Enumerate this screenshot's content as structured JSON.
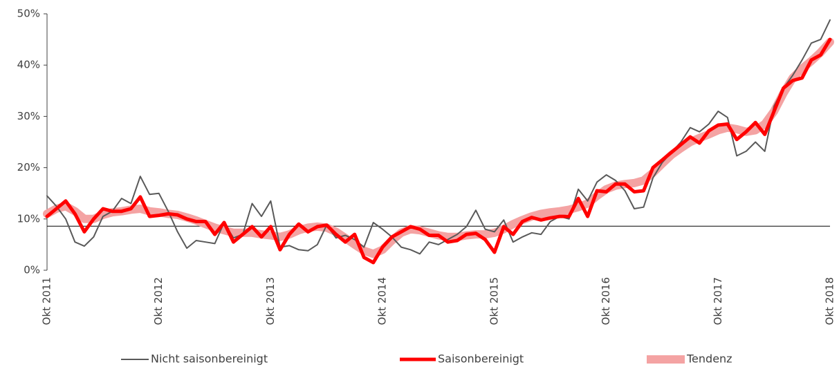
{
  "chart_data": {
    "type": "line",
    "categories": [
      "Okt 2011",
      null,
      null,
      null,
      null,
      null,
      null,
      null,
      null,
      null,
      null,
      null,
      "Okt 2012",
      null,
      null,
      null,
      null,
      null,
      null,
      null,
      null,
      null,
      null,
      null,
      "Okt 2013",
      null,
      null,
      null,
      null,
      null,
      null,
      null,
      null,
      null,
      null,
      null,
      "Okt 2014",
      null,
      null,
      null,
      null,
      null,
      null,
      null,
      null,
      null,
      null,
      null,
      "Okt 2015",
      null,
      null,
      null,
      null,
      null,
      null,
      null,
      null,
      null,
      null,
      null,
      "Okt 2016",
      null,
      null,
      null,
      null,
      null,
      null,
      null,
      null,
      null,
      null,
      null,
      "Okt 2017",
      null,
      null,
      null,
      null,
      null,
      null,
      null,
      null,
      null,
      null,
      null,
      "Okt 2018"
    ],
    "series": [
      {
        "name": "Tendenz",
        "color": "#f4a3a3",
        "width": 12,
        "values": [
          11,
          12,
          12.5,
          11.5,
          10,
          10,
          10.8,
          11.3,
          11.5,
          11.8,
          12,
          11.5,
          11.3,
          11,
          10.8,
          10.3,
          9.7,
          9,
          8.3,
          7.8,
          7.3,
          7.3,
          7.3,
          7,
          6.8,
          6.5,
          7,
          7.8,
          8.3,
          8.5,
          8.3,
          7.5,
          6.3,
          5,
          3.8,
          3.2,
          4,
          5.8,
          7.3,
          8,
          7.8,
          7.3,
          6.8,
          6.5,
          6.5,
          6.8,
          7,
          7,
          7.3,
          8,
          9,
          9.8,
          10.5,
          11,
          11.3,
          11.5,
          11.8,
          12.3,
          13,
          14.5,
          15.8,
          16.5,
          16.8,
          17,
          17.5,
          19,
          20.8,
          22.5,
          23.8,
          25,
          25.8,
          26.5,
          27.3,
          27.8,
          27.5,
          27,
          27.3,
          28.5,
          31,
          34.5,
          37.5,
          39.3,
          40.8,
          42.5,
          44.5
        ]
      },
      {
        "name": "Nicht saisonbereinigt",
        "color": "#595959",
        "width": 2,
        "values": [
          14.5,
          12.5,
          10,
          5.5,
          4.7,
          6.5,
          10.5,
          11.5,
          14,
          13,
          18.3,
          14.8,
          15,
          11.5,
          7.5,
          4.3,
          5.8,
          5.5,
          5.2,
          9.3,
          6.3,
          7,
          13,
          10.5,
          13.5,
          4.5,
          4.8,
          4,
          3.8,
          5,
          8.8,
          6.3,
          6.8,
          6,
          4.5,
          9.3,
          8,
          6.5,
          4.5,
          4,
          3.2,
          5.5,
          5,
          6,
          7,
          8.5,
          11.7,
          8,
          7.5,
          9.8,
          5.5,
          6.5,
          7.3,
          7,
          9.5,
          10.5,
          10,
          15.8,
          13.5,
          17.2,
          18.6,
          17.5,
          15.5,
          12,
          12.3,
          18,
          21,
          23,
          25,
          27.8,
          27,
          28.5,
          31,
          29.8,
          22.3,
          23.2,
          25,
          23.2,
          32,
          35.5,
          38,
          41,
          44.3,
          45,
          48.8
        ]
      },
      {
        "name": "Saisonbereinigt",
        "color": "#ff0000",
        "width": 5,
        "values": [
          10.5,
          12,
          13.5,
          11,
          7.5,
          10,
          12,
          11.5,
          11.5,
          12,
          14.3,
          10.5,
          10.7,
          11,
          10.8,
          10,
          9.5,
          9.5,
          7,
          9.3,
          5.5,
          7,
          8.5,
          6.5,
          8.5,
          4,
          7,
          9,
          7.5,
          8.5,
          8.8,
          7,
          5.5,
          7,
          2.5,
          1.5,
          4.5,
          6.5,
          7.5,
          8.5,
          8,
          6.8,
          6.8,
          5.5,
          5.8,
          7,
          7.2,
          6,
          3.5,
          8.5,
          7,
          9.5,
          10.3,
          9.8,
          10.2,
          10.5,
          10.5,
          14,
          10.5,
          15.5,
          15.3,
          16.8,
          16.8,
          15.3,
          15.5,
          20,
          21.5,
          23,
          24.5,
          26,
          24.8,
          27.2,
          28.3,
          28.5,
          25.5,
          27,
          28.8,
          26.5,
          31,
          35.5,
          37,
          37.5,
          41,
          42,
          45
        ]
      }
    ],
    "legend_order": [
      1,
      2,
      0
    ],
    "ylim": [
      0,
      50
    ],
    "yticks": [
      {
        "value": 0,
        "label": "0%"
      },
      {
        "value": 10,
        "label": "10%"
      },
      {
        "value": 20,
        "label": "20%"
      },
      {
        "value": 30,
        "label": "30%"
      },
      {
        "value": 40,
        "label": "40%"
      },
      {
        "value": 50,
        "label": "50%"
      }
    ],
    "x_axis_crosses_at": 8.6,
    "legend": "bottom"
  }
}
